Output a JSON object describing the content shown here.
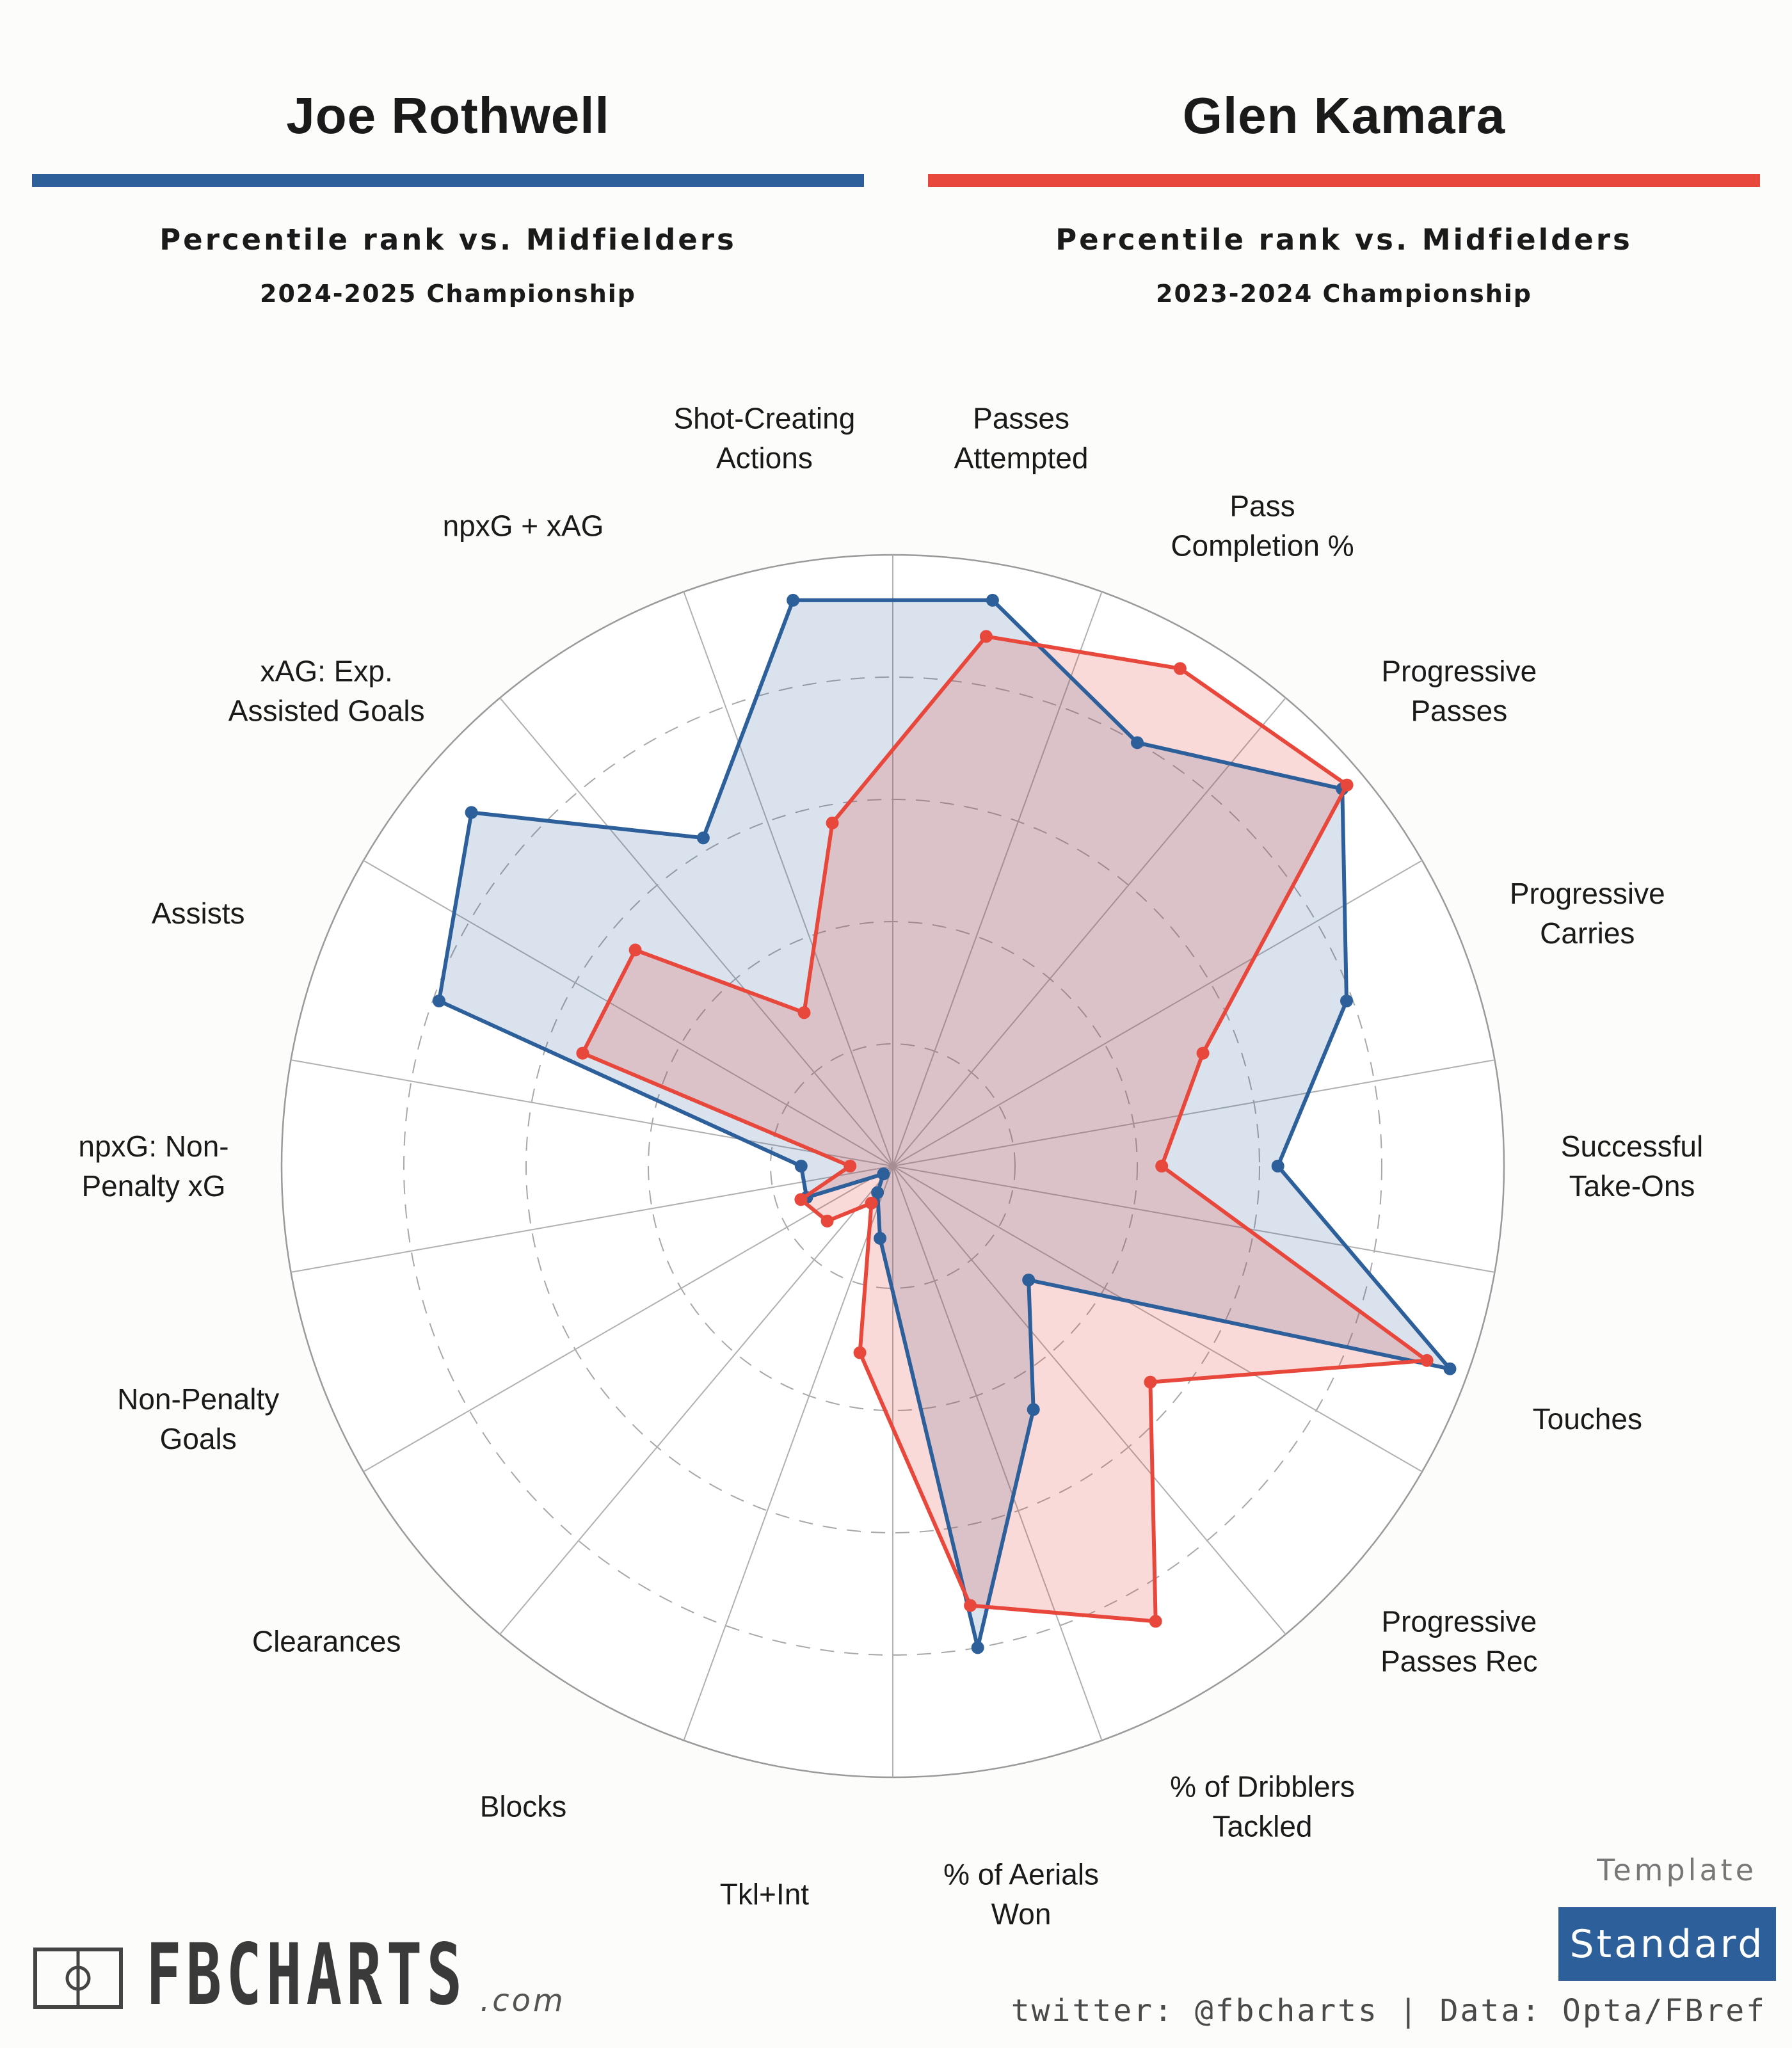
{
  "players": [
    {
      "name": "Joe Rothwell",
      "color": "#2d5f9a",
      "subtitle": "Percentile rank vs. Midfielders",
      "season": "2024-2025 Championship"
    },
    {
      "name": "Glen Kamara",
      "color": "#e8473c",
      "subtitle": "Percentile rank vs. Midfielders",
      "season": "2023-2024 Championship"
    }
  ],
  "chart_data": {
    "type": "radar",
    "title": "Percentile rank vs. Midfielders",
    "rlim": [
      0,
      100
    ],
    "gridlines": [
      20,
      40,
      60,
      80
    ],
    "categories": [
      "Passes Attempted",
      "Pass Completion %",
      "Progressive Passes",
      "Progressive Carries",
      "Successful Take-Ons",
      "Touches",
      "Progressive Passes Rec",
      "% of Dribblers Tackled",
      "% of Aerials Won",
      "Tkl+Int",
      "Blocks",
      "Clearances",
      "Non-Penalty Goals",
      "npxG: Non-Penalty xG",
      "Assists",
      "xAG: Exp. Assisted Goals",
      "npxG + xAG",
      "Shot-Creating Actions"
    ],
    "category_labels": [
      [
        "Passes",
        "Attempted"
      ],
      [
        "Pass",
        "Completion %"
      ],
      [
        "Progressive",
        "Passes"
      ],
      [
        "Progressive",
        "Carries"
      ],
      [
        "Successful",
        "Take-Ons"
      ],
      [
        "Touches"
      ],
      [
        "Progressive",
        "Passes Rec"
      ],
      [
        "% of Dribblers",
        "Tackled"
      ],
      [
        "% of Aerials",
        "Won"
      ],
      [
        "Tkl+Int"
      ],
      [
        "Blocks"
      ],
      [
        "Clearances"
      ],
      [
        "Non-Penalty",
        "Goals"
      ],
      [
        "npxG: Non-",
        "Penalty xG"
      ],
      [
        "Assists"
      ],
      [
        "xAG: Exp.",
        "Assisted Goals"
      ],
      [
        "npxG + xAG"
      ],
      [
        "Shot-Creating",
        "Actions"
      ]
    ],
    "series": [
      {
        "name": "Joe Rothwell",
        "color": "#2d5f9a",
        "fill": "rgba(45,95,154,0.18)",
        "values": [
          94,
          80,
          96,
          79,
          63,
          97,
          29,
          46,
          80,
          12,
          5,
          2,
          15,
          15,
          79,
          90,
          62,
          94
        ]
      },
      {
        "name": "Glen Kamara",
        "color": "#e8473c",
        "fill": "rgba(232,71,60,0.20)",
        "values": [
          88,
          94,
          97,
          54,
          44,
          93,
          55,
          86,
          73,
          31,
          7,
          14,
          16,
          7,
          54,
          55,
          29,
          57
        ]
      }
    ]
  },
  "template": {
    "label": "Template",
    "value": "Standard"
  },
  "branding": {
    "logo": "FBCHARTS",
    "domain": ".com",
    "credit": "twitter: @fbcharts | Data: Opta/FBref"
  }
}
